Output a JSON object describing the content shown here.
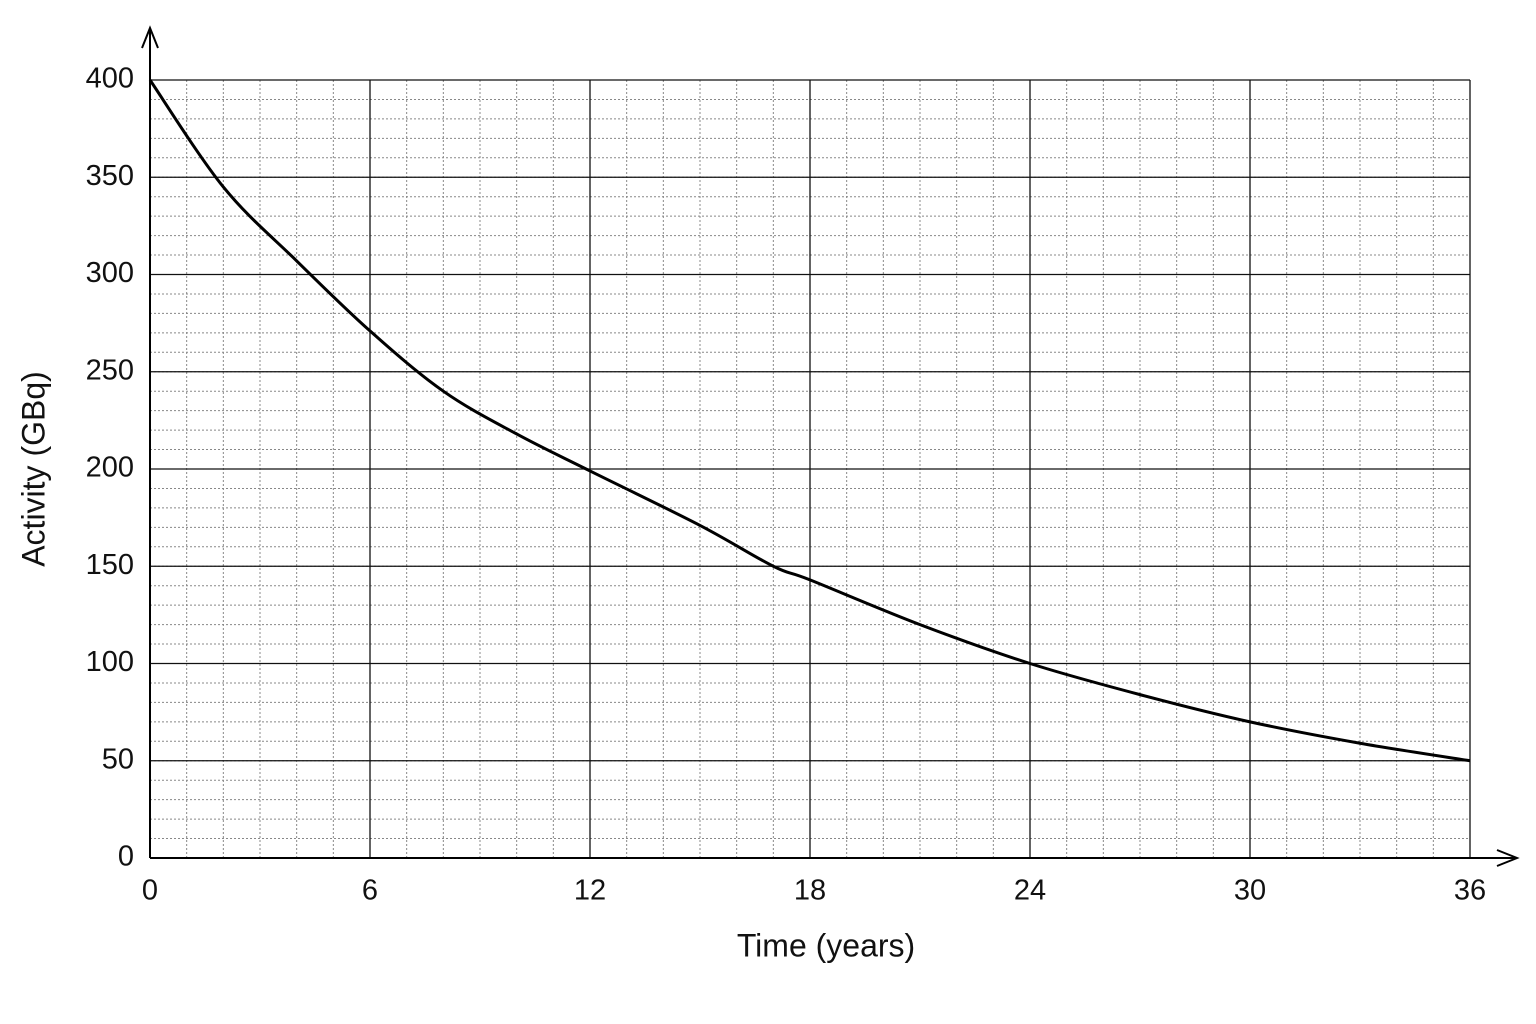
{
  "chart_data": {
    "type": "line",
    "x_label": "Time (years)",
    "y_label": "Activity (GBq)",
    "x": [
      0,
      2,
      4,
      6,
      8,
      10,
      12,
      15,
      17,
      18,
      21,
      24,
      27,
      30,
      33,
      36
    ],
    "values": [
      400,
      345,
      307,
      271,
      240,
      218,
      199,
      171,
      150,
      143,
      120,
      100,
      84,
      70,
      59,
      50
    ],
    "color": "#000000",
    "xlim": [
      0,
      36
    ],
    "xticks": [
      0,
      6,
      12,
      18,
      24,
      30,
      36
    ],
    "ylim": [
      0,
      400
    ],
    "yticks": [
      0,
      50,
      100,
      150,
      200,
      250,
      300,
      350,
      400
    ],
    "grid": true,
    "minor_grid": {
      "x": 1,
      "y": 10
    }
  }
}
